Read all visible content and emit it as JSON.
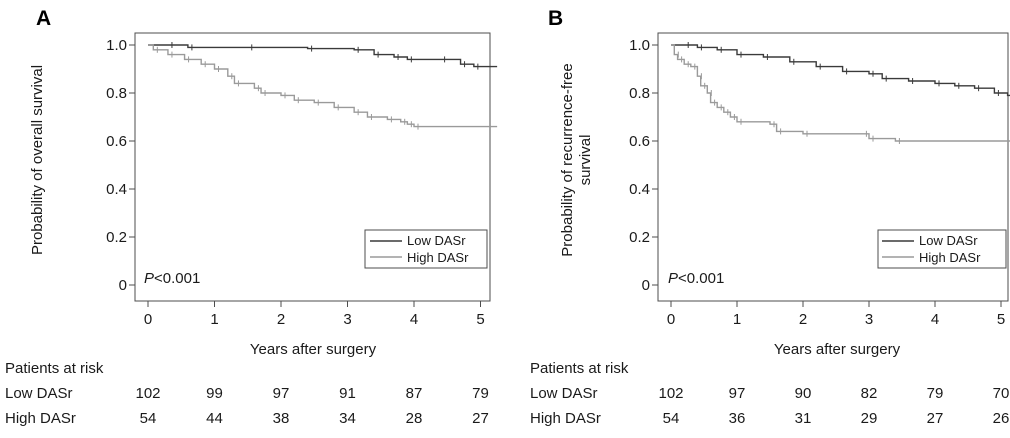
{
  "chart_data": [
    {
      "panel": "A",
      "type": "line",
      "ylabel": "Probability of overall survival",
      "xlabel": "Years after surgery",
      "xlim": [
        0,
        5.25
      ],
      "ylim": [
        0,
        1.0
      ],
      "xticks": [
        "0",
        "1",
        "2",
        "3",
        "4",
        "5"
      ],
      "yticks": [
        "0",
        "0.2",
        "0.4",
        "0.6",
        "0.8",
        "1.0"
      ],
      "p_value_prefix": "P",
      "p_value_rest": "<0.001",
      "legend_placement": "bottom-right",
      "series": [
        {
          "name": "Low DASr",
          "color": "#3a3a3a",
          "points": [
            [
              0,
              1.0
            ],
            [
              0.3,
              1.0
            ],
            [
              0.6,
              0.99
            ],
            [
              1.5,
              0.99
            ],
            [
              2.4,
              0.985
            ],
            [
              3.1,
              0.98
            ],
            [
              3.4,
              0.96
            ],
            [
              3.7,
              0.95
            ],
            [
              3.9,
              0.94
            ],
            [
              4.4,
              0.94
            ],
            [
              4.7,
              0.92
            ],
            [
              4.9,
              0.91
            ],
            [
              5.25,
              0.91
            ]
          ]
        },
        {
          "name": "High DASr",
          "color": "#9a9a9a",
          "points": [
            [
              0,
              1.0
            ],
            [
              0.08,
              0.98
            ],
            [
              0.3,
              0.96
            ],
            [
              0.55,
              0.94
            ],
            [
              0.8,
              0.92
            ],
            [
              1.0,
              0.9
            ],
            [
              1.2,
              0.87
            ],
            [
              1.3,
              0.84
            ],
            [
              1.6,
              0.82
            ],
            [
              1.7,
              0.8
            ],
            [
              2.0,
              0.79
            ],
            [
              2.2,
              0.77
            ],
            [
              2.5,
              0.76
            ],
            [
              2.8,
              0.74
            ],
            [
              3.1,
              0.72
            ],
            [
              3.3,
              0.7
            ],
            [
              3.6,
              0.69
            ],
            [
              3.8,
              0.68
            ],
            [
              3.9,
              0.67
            ],
            [
              4.0,
              0.66
            ],
            [
              5.25,
              0.66
            ]
          ]
        }
      ],
      "risk_table": {
        "header": "Patients at risk",
        "rows": [
          {
            "label": "Low DASr",
            "values": [
              "102",
              "99",
              "97",
              "91",
              "87",
              "79"
            ]
          },
          {
            "label": "High DASr",
            "values": [
              "54",
              "44",
              "38",
              "34",
              "28",
              "27"
            ]
          }
        ]
      }
    },
    {
      "panel": "B",
      "type": "line",
      "ylabel_line1": "Probability of recurrence-free",
      "ylabel_line2": "survival",
      "xlabel": "Years after surgery",
      "xlim": [
        0,
        5.25
      ],
      "ylim": [
        0,
        1.0
      ],
      "xticks": [
        "0",
        "1",
        "2",
        "3",
        "4",
        "5"
      ],
      "yticks": [
        "0",
        "0.2",
        "0.4",
        "0.6",
        "0.8",
        "1.0"
      ],
      "p_value_prefix": "P",
      "p_value_rest": "<0.001",
      "legend_placement": "bottom-right",
      "series": [
        {
          "name": "Low DASr",
          "color": "#3a3a3a",
          "points": [
            [
              0,
              1.0
            ],
            [
              0.2,
              1.0
            ],
            [
              0.4,
              0.99
            ],
            [
              0.7,
              0.98
            ],
            [
              1.0,
              0.96
            ],
            [
              1.4,
              0.95
            ],
            [
              1.8,
              0.93
            ],
            [
              2.2,
              0.91
            ],
            [
              2.6,
              0.89
            ],
            [
              3.0,
              0.88
            ],
            [
              3.2,
              0.86
            ],
            [
              3.6,
              0.85
            ],
            [
              4.0,
              0.84
            ],
            [
              4.3,
              0.83
            ],
            [
              4.6,
              0.82
            ],
            [
              4.9,
              0.8
            ],
            [
              5.1,
              0.79
            ],
            [
              5.25,
              0.78
            ]
          ]
        },
        {
          "name": "High DASr",
          "color": "#9a9a9a",
          "points": [
            [
              0,
              1.0
            ],
            [
              0.05,
              0.96
            ],
            [
              0.1,
              0.94
            ],
            [
              0.2,
              0.92
            ],
            [
              0.3,
              0.91
            ],
            [
              0.4,
              0.87
            ],
            [
              0.45,
              0.83
            ],
            [
              0.55,
              0.8
            ],
            [
              0.6,
              0.76
            ],
            [
              0.7,
              0.74
            ],
            [
              0.8,
              0.72
            ],
            [
              0.9,
              0.7
            ],
            [
              1.0,
              0.68
            ],
            [
              1.5,
              0.67
            ],
            [
              1.6,
              0.64
            ],
            [
              2.0,
              0.63
            ],
            [
              2.9,
              0.63
            ],
            [
              3.0,
              0.61
            ],
            [
              3.4,
              0.6
            ],
            [
              5.25,
              0.6
            ]
          ]
        }
      ],
      "risk_table": {
        "header": "Patients at risk",
        "rows": [
          {
            "label": "Low DASr",
            "values": [
              "102",
              "97",
              "90",
              "82",
              "79",
              "70"
            ]
          },
          {
            "label": "High DASr",
            "values": [
              "54",
              "36",
              "31",
              "29",
              "27",
              "26"
            ]
          }
        ]
      }
    }
  ]
}
